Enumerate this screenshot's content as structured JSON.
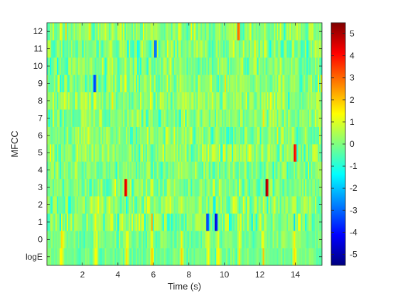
{
  "chart_data": {
    "type": "heatmap",
    "title": "",
    "xlabel": "Time (s)",
    "ylabel": "MFCC",
    "xlim": [
      0,
      15.5
    ],
    "x_ticks": [
      2,
      4,
      6,
      8,
      10,
      12,
      14
    ],
    "x_tick_labels": [
      "2",
      "4",
      "6",
      "8",
      "10",
      "12",
      "14"
    ],
    "rows": [
      "logE",
      "0",
      "1",
      "2",
      "3",
      "4",
      "5",
      "6",
      "7",
      "8",
      "9",
      "10",
      "11",
      "12"
    ],
    "colormap": "jet",
    "clim": [
      -5.5,
      5.5
    ],
    "colorbar_ticks": [
      -5,
      -4,
      -3,
      -2,
      -1,
      0,
      1,
      2,
      3,
      4,
      5
    ],
    "colorbar_tick_labels": [
      "-5",
      "-4",
      "-3",
      "-2",
      "-1",
      "0",
      "1",
      "2",
      "3",
      "4",
      "5"
    ],
    "n_frames": 195,
    "notable_values": [
      {
        "row": "3",
        "time": 4.45,
        "value": 4.5
      },
      {
        "row": "3",
        "time": 12.35,
        "value": 5.3
      },
      {
        "row": "5",
        "time": 13.95,
        "value": 4.2
      },
      {
        "row": "1",
        "time": 9.5,
        "value": -4.5
      },
      {
        "row": "1",
        "time": 9.0,
        "value": -3.5
      },
      {
        "row": "9",
        "time": 2.7,
        "value": -3.5
      },
      {
        "row": "11",
        "time": 6.1,
        "value": -3.0
      },
      {
        "row": "12",
        "time": 10.75,
        "value": 3.0
      }
    ]
  }
}
